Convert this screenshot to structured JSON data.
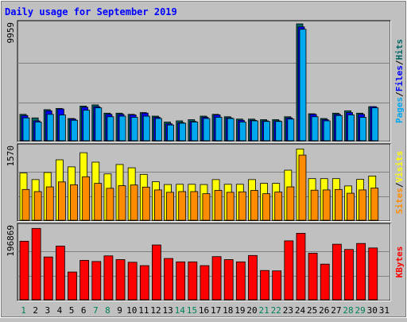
{
  "colors": {
    "background": "#c0c0c0",
    "plot_background": "#c0c0c0",
    "title": "#0000ff",
    "gridline": "#808080",
    "hits": "#006666",
    "files": "#0000ff",
    "pages": "#00a8f0",
    "visits": "#ffff00",
    "sites": "#ff8c00",
    "kbytes": "#ff0000",
    "weekend_day": "#00805c",
    "weekday_day": "#000000"
  },
  "chart_data": {
    "type": "bar",
    "title": "Daily usage for September 2019",
    "categories": [
      "1",
      "2",
      "3",
      "4",
      "5",
      "6",
      "7",
      "8",
      "9",
      "10",
      "11",
      "12",
      "13",
      "14",
      "15",
      "16",
      "17",
      "18",
      "19",
      "20",
      "21",
      "22",
      "23",
      "24",
      "25",
      "26",
      "27",
      "28",
      "29",
      "30",
      "31"
    ],
    "weekend_days": [
      "1",
      "7",
      "8",
      "14",
      "15",
      "21",
      "22",
      "28",
      "29"
    ],
    "panels": [
      {
        "ymax_label": "9959",
        "ylim": [
          0,
          9959
        ],
        "legend": [
          "Pages",
          "Files",
          "Hits"
        ],
        "series": [
          {
            "name": "Hits",
            "values": [
              2300,
              2000,
              2700,
              2800,
              1950,
              3000,
              3100,
              2400,
              2400,
              2300,
              2450,
              2150,
              1650,
              1750,
              1850,
              2150,
              2300,
              2100,
              1900,
              1900,
              1850,
              1850,
              2100,
              9959,
              2350,
              1950,
              2400,
              2600,
              2400,
              2950,
              0
            ]
          },
          {
            "name": "Files",
            "values": [
              2200,
              1750,
              2600,
              2750,
              1900,
              2900,
              2950,
              2300,
              2300,
              2250,
              2400,
              2050,
              1500,
              1600,
              1700,
              2050,
              2250,
              2000,
              1800,
              1800,
              1750,
              1750,
              2000,
              9700,
              2300,
              1850,
              2300,
              2450,
              2300,
              2950,
              0
            ]
          },
          {
            "name": "Pages",
            "values": [
              2000,
              1650,
              2300,
              2250,
              1800,
              2650,
              2850,
              2100,
              2150,
              2050,
              2150,
              1950,
              1400,
              1550,
              1650,
              1950,
              2050,
              1950,
              1650,
              1750,
              1700,
              1700,
              1900,
              9500,
              2100,
              1750,
              2200,
              2250,
              2050,
              2850,
              0
            ]
          }
        ]
      },
      {
        "ymax_label": "1570",
        "ylim": [
          0,
          1570
        ],
        "legend": [
          "Sites",
          "Visits"
        ],
        "series": [
          {
            "name": "Visits",
            "values": [
              1020,
              880,
              1030,
              1300,
              1150,
              1450,
              1250,
              1000,
              1200,
              1130,
              990,
              835,
              775,
              780,
              780,
              775,
              880,
              780,
              780,
              880,
              800,
              800,
              1080,
              1530,
              900,
              900,
              900,
              745,
              885,
              955,
              0
            ]
          },
          {
            "name": "Sites",
            "values": [
              670,
              625,
              725,
              830,
              770,
              940,
              800,
              695,
              750,
              765,
              720,
              660,
              610,
              625,
              625,
              580,
              650,
              610,
              620,
              650,
              580,
              615,
              725,
              1400,
              655,
              660,
              670,
              590,
              660,
              700,
              0
            ]
          }
        ]
      },
      {
        "ymax_label": "196869",
        "ylim": [
          0,
          196869
        ],
        "legend": [
          "KBytes"
        ],
        "series": [
          {
            "name": "KBytes",
            "values": [
              158000,
              192000,
              116000,
              145000,
              76000,
              107000,
              104000,
              119000,
              109000,
              102000,
              93000,
              148000,
              112000,
              103000,
              103000,
              93000,
              117000,
              109000,
              103000,
              120000,
              80000,
              79000,
              159000,
              179000,
              126000,
              97000,
              150000,
              136000,
              152000,
              140000,
              0
            ]
          }
        ]
      }
    ]
  }
}
